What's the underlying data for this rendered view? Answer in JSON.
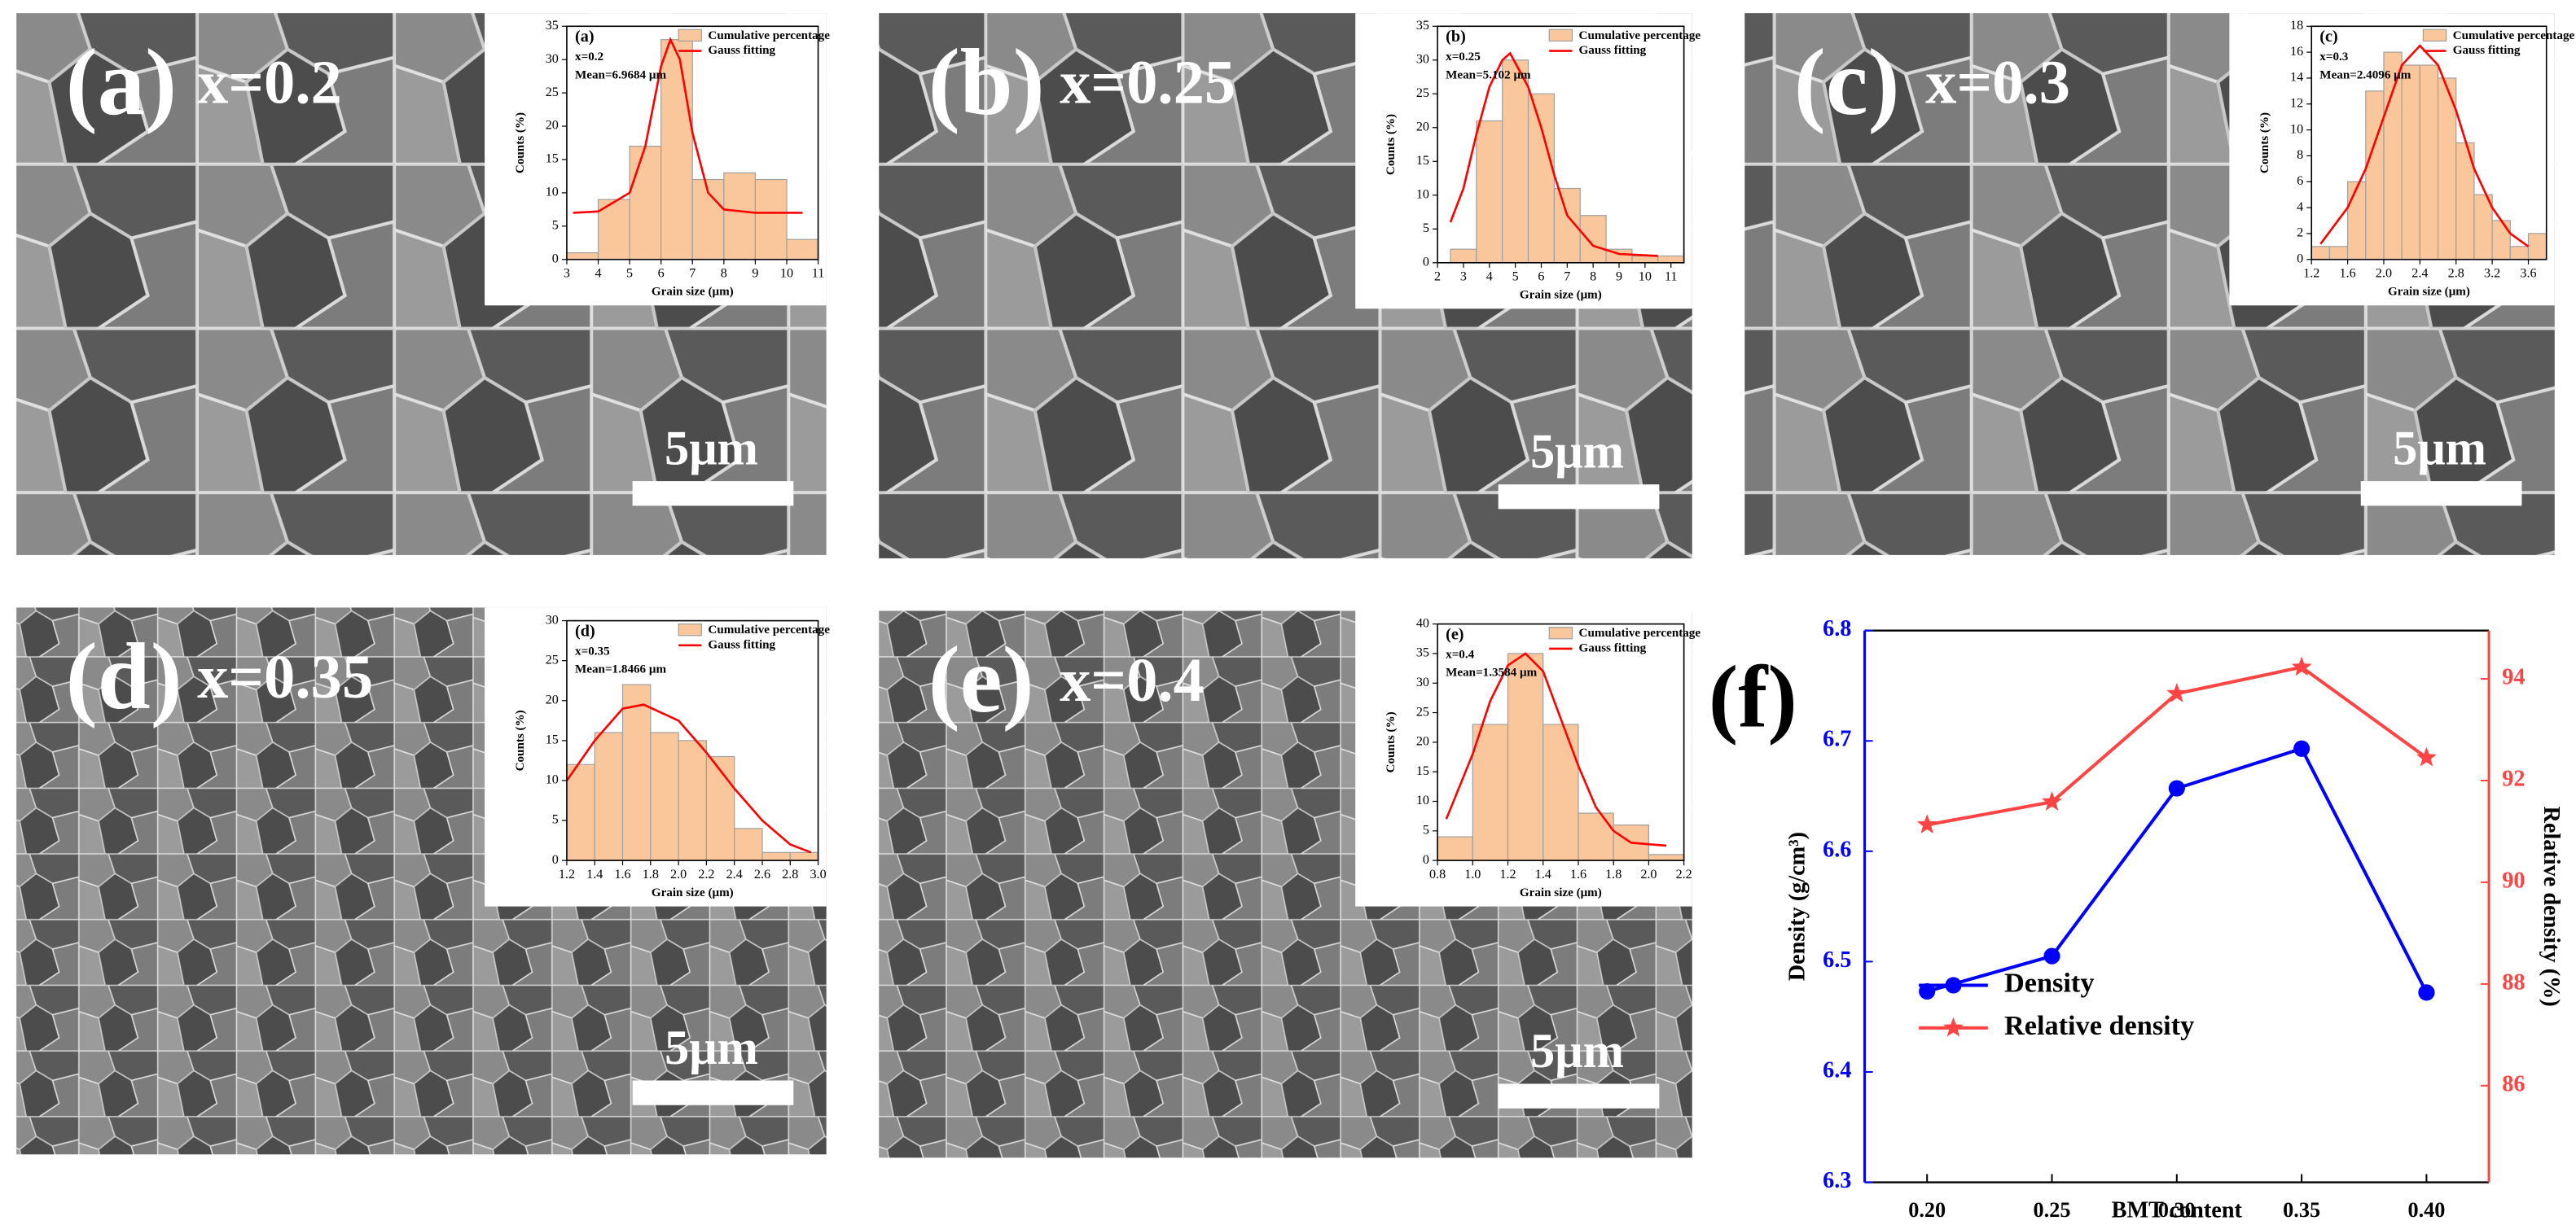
{
  "panels": [
    {
      "label": "(a)",
      "composition": "x=0.2",
      "scale_bar": "5μm"
    },
    {
      "label": "(b)",
      "composition": "x=0.25",
      "scale_bar": "5μm"
    },
    {
      "label": "(c)",
      "composition": "x=0.3",
      "scale_bar": "5μm"
    },
    {
      "label": "(d)",
      "composition": "x=0.35",
      "scale_bar": "5μm"
    },
    {
      "label": "(e)",
      "composition": "x=0.4",
      "scale_bar": "5μm"
    }
  ],
  "chart_data": [
    {
      "type": "histogram",
      "title": "(a)",
      "subtitle": "x=0.2",
      "annotation": "Mean=6.9684 μm",
      "xlabel": "Grain size (μm)",
      "ylabel": "Counts (%)",
      "bar_name": "Cumulative percentage",
      "color": "#f9c79b",
      "bins": [
        3,
        4,
        5,
        6,
        7,
        8,
        9,
        10,
        11
      ],
      "values": [
        1,
        9,
        17,
        33,
        12,
        13,
        12,
        3
      ],
      "xlim": [
        3,
        11
      ],
      "xticks": [
        3,
        4,
        5,
        6,
        7,
        8,
        9,
        10,
        11
      ],
      "ylim": [
        0,
        35
      ],
      "yticks": [
        0,
        5,
        10,
        15,
        20,
        25,
        30,
        35
      ],
      "fit": {
        "name": "Gauss fitting",
        "color": "#ff0000",
        "x": [
          3.2,
          4,
          5,
          5.5,
          6,
          6.3,
          6.6,
          7,
          7.5,
          8,
          9,
          10.5
        ],
        "values": [
          7,
          7.2,
          10,
          17,
          29,
          33,
          30,
          19,
          10,
          7.5,
          7,
          7
        ]
      }
    },
    {
      "type": "histogram",
      "title": "(b)",
      "subtitle": "x=0.25",
      "annotation": "Mean=5.102 μm",
      "xlabel": "Grain size (μm)",
      "ylabel": "Counts (%)",
      "bar_name": "Cumulative percentage",
      "color": "#f9c79b",
      "bins": [
        2.5,
        3.5,
        4.5,
        5.5,
        6.5,
        7.5,
        8.5,
        9.5,
        10.5,
        11.5
      ],
      "values": [
        2,
        21,
        30,
        25,
        11,
        7,
        2,
        1,
        1
      ],
      "xlim": [
        2,
        11.5
      ],
      "xticks": [
        2,
        3,
        4,
        5,
        6,
        7,
        8,
        9,
        10,
        11
      ],
      "ylim": [
        0,
        35
      ],
      "yticks": [
        0,
        5,
        10,
        15,
        20,
        25,
        30,
        35
      ],
      "fit": {
        "name": "Gauss fitting",
        "color": "#ff0000",
        "x": [
          2.5,
          3,
          3.5,
          4,
          4.5,
          4.8,
          5.5,
          6,
          6.5,
          7,
          8,
          9,
          10.5
        ],
        "values": [
          6,
          11,
          19,
          26,
          30,
          31,
          26,
          20,
          13,
          7,
          2.5,
          1.3,
          1
        ]
      }
    },
    {
      "type": "histogram",
      "title": "(c)",
      "subtitle": "x=0.3",
      "annotation": "Mean=2.4096 μm",
      "xlabel": "Grain size (μm)",
      "ylabel": "Counts (%)",
      "bar_name": "Cumulative percentage",
      "color": "#f9c79b",
      "bins": [
        1.2,
        1.4,
        1.6,
        1.8,
        2,
        2.2,
        2.4,
        2.6,
        2.8,
        3,
        3.2,
        3.4,
        3.6,
        3.8
      ],
      "values": [
        1,
        1,
        6,
        13,
        16,
        15,
        15,
        14,
        9,
        5,
        3,
        1,
        2
      ],
      "xlim": [
        1.2,
        3.8
      ],
      "xticks": [
        1.2,
        1.6,
        {
          "value": 2,
          "label": "2.0"
        },
        2.4,
        2.8,
        3.2,
        3.6
      ],
      "ylim": [
        0,
        18
      ],
      "yticks": [
        0,
        2,
        4,
        6,
        8,
        10,
        12,
        14,
        16,
        18
      ],
      "fit": {
        "name": "Gauss fitting",
        "color": "#ff0000",
        "x": [
          1.3,
          1.6,
          1.8,
          2,
          2.2,
          2.4,
          2.6,
          2.8,
          3,
          3.2,
          3.4,
          3.6
        ],
        "values": [
          1.2,
          4,
          7,
          11,
          15,
          16.5,
          15,
          11.5,
          7,
          4,
          2,
          1
        ]
      }
    },
    {
      "type": "histogram",
      "title": "(d)",
      "subtitle": "x=0.35",
      "annotation": "Mean=1.8466 μm",
      "xlabel": "Grain size (μm)",
      "ylabel": "Counts (%)",
      "bar_name": "Cumulative percentage",
      "color": "#f9c79b",
      "bins": [
        1.2,
        1.4,
        1.6,
        1.8,
        2,
        2.2,
        2.4,
        2.6,
        2.8,
        3
      ],
      "values": [
        12,
        16,
        22,
        16,
        15,
        13,
        4,
        1,
        1
      ],
      "xlim": [
        1.2,
        3
      ],
      "xticks": [
        1.2,
        1.4,
        1.6,
        1.8,
        {
          "value": 2,
          "label": "2.0"
        },
        2.2,
        2.4,
        2.6,
        2.8,
        {
          "value": 3,
          "label": "3.0"
        }
      ],
      "ylim": [
        0,
        30
      ],
      "yticks": [
        0,
        5,
        10,
        15,
        20,
        25,
        30
      ],
      "fit": {
        "name": "Gauss fitting",
        "color": "#ff0000",
        "x": [
          1.2,
          1.4,
          1.6,
          1.75,
          2,
          2.2,
          2.4,
          2.6,
          2.8,
          2.95
        ],
        "values": [
          10,
          15,
          19,
          19.5,
          17.5,
          13.5,
          9,
          5,
          2,
          1
        ]
      }
    },
    {
      "type": "histogram",
      "title": "(e)",
      "subtitle": "x=0.4",
      "annotation": "Mean=1.3584 μm",
      "xlabel": "Grain size (μm)",
      "ylabel": "Counts (%)",
      "bar_name": "Cumulative percentage",
      "color": "#f9c79b",
      "bins": [
        0.8,
        1,
        1.2,
        1.4,
        1.6,
        1.8,
        2,
        2.2
      ],
      "values": [
        4,
        23,
        35,
        23,
        8,
        6,
        1
      ],
      "xlim": [
        0.8,
        2.2
      ],
      "xticks": [
        0.8,
        {
          "value": 1,
          "label": "1.0"
        },
        1.2,
        1.4,
        1.6,
        1.8,
        {
          "value": 2,
          "label": "2.0"
        },
        2.2
      ],
      "ylim": [
        0,
        40
      ],
      "yticks": [
        0,
        5,
        10,
        15,
        20,
        25,
        30,
        35,
        40
      ],
      "fit": {
        "name": "Gauss fitting",
        "color": "#ff0000",
        "x": [
          0.85,
          1,
          1.1,
          1.2,
          1.3,
          1.4,
          1.5,
          1.6,
          1.7,
          1.8,
          1.9,
          2.1
        ],
        "values": [
          7,
          18,
          27,
          33,
          35,
          32,
          24,
          16,
          9,
          5,
          3,
          2.5
        ]
      }
    },
    {
      "type": "line",
      "title": "(f)",
      "xlabel": "BMT content",
      "ylabel": "Density (g/cm³)",
      "y2label": "Relative density (%)",
      "x": [
        0.2,
        0.25,
        0.3,
        0.35,
        0.4
      ],
      "series": [
        {
          "name": "Density",
          "color": "#0000ff",
          "marker": "circle",
          "values": [
            6.473,
            6.505,
            6.657,
            6.693,
            6.472
          ]
        },
        {
          "name": "Relative density",
          "color": "#ff4444",
          "marker": "star",
          "axis": "y2",
          "values": [
            91.13,
            91.58,
            93.71,
            94.23,
            92.45
          ]
        }
      ],
      "xlim": [
        0.175,
        0.425
      ],
      "xticks": [
        {
          "value": 0.2,
          "label": "0.20"
        },
        {
          "value": 0.25,
          "label": "0.25"
        },
        {
          "value": 0.3,
          "label": "0.30"
        },
        {
          "value": 0.35,
          "label": "0.35"
        },
        {
          "value": 0.4,
          "label": "0.40"
        }
      ],
      "ylim": [
        6.3,
        6.8
      ],
      "yticks": [
        6.3,
        6.4,
        6.5,
        6.6,
        6.7,
        6.8
      ],
      "y2lim": [
        84.1,
        94.95
      ],
      "y2ticks": [
        86,
        88,
        90,
        92,
        94
      ],
      "legend": "lower left"
    }
  ]
}
